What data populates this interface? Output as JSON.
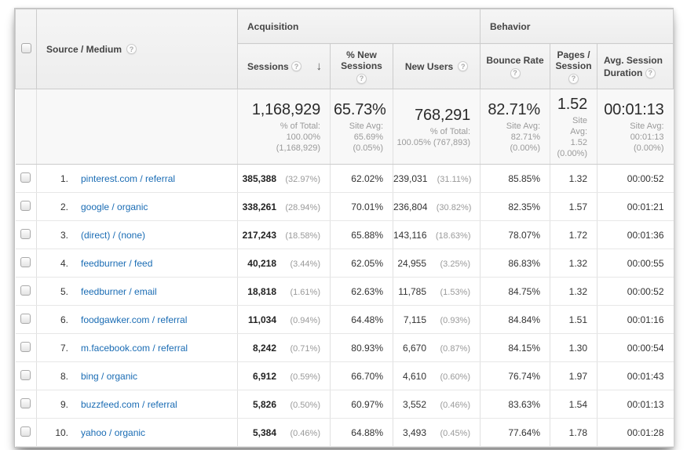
{
  "icons": {
    "help": "?",
    "sort_desc": "↓"
  },
  "colors": {
    "link": "#1a6cb4",
    "header_bg": "#f0f0f0",
    "muted": "#9a9a9a"
  },
  "header": {
    "source_medium": "Source / Medium",
    "group_acquisition": "Acquisition",
    "group_behavior": "Behavior",
    "sessions": "Sessions",
    "pct_new_sessions": "% New Sessions",
    "new_users": "New Users",
    "bounce_rate": "Bounce Rate",
    "pages_session": "Pages / Session",
    "avg_session_duration": "Avg. Session Duration"
  },
  "summary": {
    "sessions": {
      "value": "1,168,929",
      "sub": "% of Total:\n100.00%\n(1,168,929)"
    },
    "pct_new_sessions": {
      "value": "65.73%",
      "sub": "Site Avg:\n65.69%\n(0.05%)"
    },
    "new_users": {
      "value": "768,291",
      "sub": "% of Total:\n100.05% (767,893)"
    },
    "bounce_rate": {
      "value": "82.71%",
      "sub": "Site Avg:\n82.71%\n(0.00%)"
    },
    "pages_session": {
      "value": "1.52",
      "sub": "Site Avg:\n1.52\n(0.00%)"
    },
    "avg_session_duration": {
      "value": "00:01:13",
      "sub": "Site Avg:\n00:01:13\n(0.00%)"
    }
  },
  "rows": [
    {
      "num": "1.",
      "source": "pinterest.com / referral",
      "sessions": "385,388",
      "sessions_pct": "(32.97%)",
      "pct_new": "62.02%",
      "new_users": "239,031",
      "new_users_pct": "(31.11%)",
      "bounce": "85.85%",
      "pages": "1.32",
      "duration": "00:00:52"
    },
    {
      "num": "2.",
      "source": "google / organic",
      "sessions": "338,261",
      "sessions_pct": "(28.94%)",
      "pct_new": "70.01%",
      "new_users": "236,804",
      "new_users_pct": "(30.82%)",
      "bounce": "82.35%",
      "pages": "1.57",
      "duration": "00:01:21"
    },
    {
      "num": "3.",
      "source": "(direct) / (none)",
      "sessions": "217,243",
      "sessions_pct": "(18.58%)",
      "pct_new": "65.88%",
      "new_users": "143,116",
      "new_users_pct": "(18.63%)",
      "bounce": "78.07%",
      "pages": "1.72",
      "duration": "00:01:36"
    },
    {
      "num": "4.",
      "source": "feedburner / feed",
      "sessions": "40,218",
      "sessions_pct": "(3.44%)",
      "pct_new": "62.05%",
      "new_users": "24,955",
      "new_users_pct": "(3.25%)",
      "bounce": "86.83%",
      "pages": "1.32",
      "duration": "00:00:55"
    },
    {
      "num": "5.",
      "source": "feedburner / email",
      "sessions": "18,818",
      "sessions_pct": "(1.61%)",
      "pct_new": "62.63%",
      "new_users": "11,785",
      "new_users_pct": "(1.53%)",
      "bounce": "84.75%",
      "pages": "1.32",
      "duration": "00:00:52"
    },
    {
      "num": "6.",
      "source": "foodgawker.com / referral",
      "sessions": "11,034",
      "sessions_pct": "(0.94%)",
      "pct_new": "64.48%",
      "new_users": "7,115",
      "new_users_pct": "(0.93%)",
      "bounce": "84.84%",
      "pages": "1.51",
      "duration": "00:01:16"
    },
    {
      "num": "7.",
      "source": "m.facebook.com / referral",
      "sessions": "8,242",
      "sessions_pct": "(0.71%)",
      "pct_new": "80.93%",
      "new_users": "6,670",
      "new_users_pct": "(0.87%)",
      "bounce": "84.15%",
      "pages": "1.30",
      "duration": "00:00:54"
    },
    {
      "num": "8.",
      "source": "bing / organic",
      "sessions": "6,912",
      "sessions_pct": "(0.59%)",
      "pct_new": "66.70%",
      "new_users": "4,610",
      "new_users_pct": "(0.60%)",
      "bounce": "76.74%",
      "pages": "1.97",
      "duration": "00:01:43"
    },
    {
      "num": "9.",
      "source": "buzzfeed.com / referral",
      "sessions": "5,826",
      "sessions_pct": "(0.50%)",
      "pct_new": "60.97%",
      "new_users": "3,552",
      "new_users_pct": "(0.46%)",
      "bounce": "83.63%",
      "pages": "1.54",
      "duration": "00:01:13"
    },
    {
      "num": "10.",
      "source": "yahoo / organic",
      "sessions": "5,384",
      "sessions_pct": "(0.46%)",
      "pct_new": "64.88%",
      "new_users": "3,493",
      "new_users_pct": "(0.45%)",
      "bounce": "77.64%",
      "pages": "1.78",
      "duration": "00:01:28"
    }
  ]
}
